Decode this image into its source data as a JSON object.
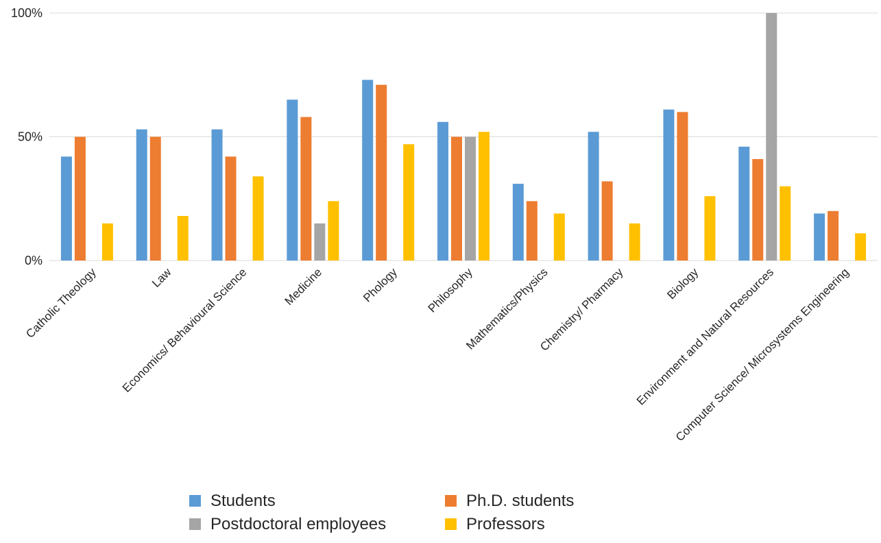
{
  "chart_data": {
    "type": "bar",
    "categories": [
      "Catholic Theology",
      "Law",
      "Economics/ Behavioural Science",
      "Medicine",
      "Phology",
      "Philosophy",
      "Mathematics/Physics",
      "Chemistry/ Pharmacy",
      "Biology",
      "Environment and Natural Resources",
      "Computer Science/ Microsystems Engineering"
    ],
    "series": [
      {
        "name": "Students",
        "color": "#5B9BD5",
        "values": [
          42,
          53,
          53,
          65,
          73,
          56,
          31,
          52,
          61,
          46,
          19
        ]
      },
      {
        "name": "Ph.D. students",
        "color": "#ED7D31",
        "values": [
          50,
          50,
          42,
          58,
          71,
          50,
          24,
          32,
          60,
          41,
          20
        ]
      },
      {
        "name": "Postdoctoral employees",
        "color": "#A5A5A5",
        "values": [
          0,
          0,
          0,
          15,
          0,
          50,
          0,
          0,
          0,
          100,
          0
        ]
      },
      {
        "name": "Professors",
        "color": "#FFC000",
        "values": [
          15,
          18,
          34,
          24,
          47,
          52,
          19,
          15,
          26,
          30,
          11
        ]
      }
    ],
    "ylim": [
      0,
      100
    ],
    "yticks": [
      {
        "value": 0,
        "label": "0%"
      },
      {
        "value": 50,
        "label": "50%"
      },
      {
        "value": 100,
        "label": "100%"
      }
    ],
    "grid": true,
    "legend_position": "bottom",
    "xlabel": "",
    "ylabel": "",
    "title": ""
  }
}
